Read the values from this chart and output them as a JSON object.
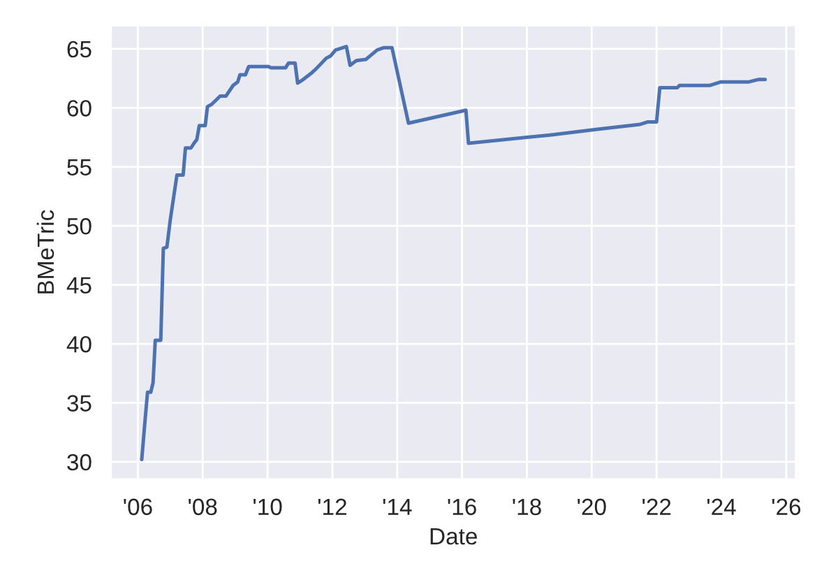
{
  "chart_data": {
    "type": "line",
    "xlabel": "Date",
    "ylabel": "BMeTric",
    "x": [
      "2006-02-14",
      "2006-03-17",
      "2006-04-20",
      "2006-05-26",
      "2006-06-21",
      "2006-07-16",
      "2006-09-16",
      "2006-10-15",
      "2006-11-24",
      "2007-01-01",
      "2007-03-17",
      "2007-05-26",
      "2007-06-21",
      "2007-08-22",
      "2007-10-04",
      "2007-10-27",
      "2007-11-24",
      "2008-01-30",
      "2008-02-24",
      "2008-04-12",
      "2008-07-16",
      "2008-09-20",
      "2008-12-09",
      "2009-01-30",
      "2009-02-24",
      "2009-04-27",
      "2009-06-03",
      "2010-01-12",
      "2010-02-06",
      "2010-07-24",
      "2010-08-26",
      "2010-11-07",
      "2010-12-06",
      "2011-02-06",
      "2011-05-19",
      "2011-07-01",
      "2011-10-23",
      "2011-12-13",
      "2012-02-06",
      "2012-06-07",
      "2012-07-19",
      "2012-09-27",
      "2013-01-12",
      "2013-05-19",
      "2013-08-04",
      "2013-11-03",
      "2014-05-08",
      "2016-02-14",
      "2016-03-14",
      "2018-09-20",
      "2020-03-21",
      "2021-07-01",
      "2021-09-20",
      "2022-01-01",
      "2022-02-06",
      "2022-08-22",
      "2022-09-16",
      "2023-08-22",
      "2023-12-28",
      "2024-11-07",
      "2025-02-17",
      "2025-05-08"
    ],
    "series": [
      {
        "color": "#4c72b0",
        "values": [
          30.2,
          33.0,
          35.9,
          35.9,
          36.7,
          40.3,
          40.3,
          48.1,
          48.2,
          50.5,
          54.3,
          54.3,
          56.6,
          56.6,
          57.1,
          57.3,
          58.5,
          58.5,
          60.1,
          60.3,
          61.0,
          61.0,
          61.9,
          62.2,
          62.8,
          62.8,
          63.5,
          63.5,
          63.4,
          63.4,
          63.8,
          63.8,
          62.1,
          62.4,
          63.0,
          63.3,
          64.2,
          64.4,
          64.9,
          65.2,
          63.6,
          64.0,
          64.1,
          64.9,
          65.1,
          65.1,
          58.7,
          59.8,
          57.0,
          57.7,
          58.2,
          58.6,
          58.8,
          58.8,
          61.7,
          61.7,
          61.9,
          61.9,
          62.2,
          62.2,
          62.4,
          62.4
        ]
      }
    ],
    "xlim": [
      "2005-02-28",
      "2026-04-22"
    ],
    "xticks": [
      {
        "value": "2006-01-01",
        "label": "'06"
      },
      {
        "value": "2008-01-01",
        "label": "'08"
      },
      {
        "value": "2010-01-01",
        "label": "'10"
      },
      {
        "value": "2012-01-01",
        "label": "'12"
      },
      {
        "value": "2014-01-01",
        "label": "'14"
      },
      {
        "value": "2016-01-01",
        "label": "'16"
      },
      {
        "value": "2018-01-01",
        "label": "'18"
      },
      {
        "value": "2020-01-01",
        "label": "'20"
      },
      {
        "value": "2022-01-01",
        "label": "'22"
      },
      {
        "value": "2024-01-01",
        "label": "'24"
      },
      {
        "value": "2026-01-01",
        "label": "'26"
      }
    ],
    "ylim": [
      28.5,
      67
    ],
    "yticks": [
      30,
      35,
      40,
      45,
      50,
      55,
      60,
      65
    ],
    "grid": true,
    "marker": "none",
    "line_style": "solid"
  }
}
